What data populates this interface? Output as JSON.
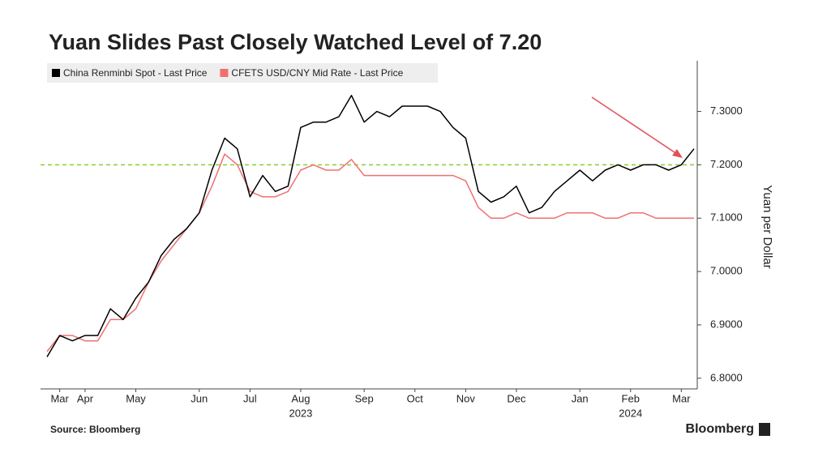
{
  "chart_data": {
    "type": "line",
    "title": "Yuan Slides Past Closely Watched Level of 7.20",
    "y_axis_label": "Yuan per Dollar",
    "source": "Source: Bloomberg",
    "brand": "Bloomberg",
    "categories": [
      null,
      "Mar",
      null,
      "Apr",
      null,
      null,
      null,
      "May",
      null,
      null,
      null,
      null,
      "Jun",
      null,
      null,
      null,
      "Jul",
      null,
      null,
      null,
      "Aug",
      null,
      null,
      null,
      null,
      "Sep",
      null,
      null,
      null,
      "Oct",
      null,
      null,
      null,
      "Nov",
      null,
      null,
      null,
      "Dec",
      null,
      null,
      null,
      null,
      "Jan",
      null,
      null,
      null,
      "Feb",
      null,
      null,
      null,
      "Mar",
      null
    ],
    "year_labels": [
      null,
      null,
      null,
      null,
      null,
      null,
      null,
      null,
      null,
      null,
      null,
      null,
      null,
      null,
      null,
      null,
      null,
      null,
      null,
      null,
      "2023",
      null,
      null,
      null,
      null,
      null,
      null,
      null,
      null,
      null,
      null,
      null,
      null,
      null,
      null,
      null,
      null,
      null,
      null,
      null,
      null,
      null,
      null,
      null,
      null,
      null,
      "2024",
      null,
      null,
      null,
      null,
      null
    ],
    "series": [
      {
        "name": "China Renminbi Spot - Last Price",
        "color": "#000000",
        "values": [
          6.84,
          6.88,
          6.87,
          6.88,
          6.88,
          6.93,
          6.91,
          6.95,
          6.98,
          7.03,
          7.06,
          7.08,
          7.11,
          7.19,
          7.25,
          7.23,
          7.14,
          7.18,
          7.15,
          7.16,
          7.27,
          7.28,
          7.28,
          7.29,
          7.33,
          7.28,
          7.3,
          7.29,
          7.31,
          7.31,
          7.31,
          7.3,
          7.27,
          7.25,
          7.15,
          7.13,
          7.14,
          7.16,
          7.11,
          7.12,
          7.15,
          7.17,
          7.19,
          7.17,
          7.19,
          7.2,
          7.19,
          7.2,
          7.2,
          7.19,
          7.2,
          7.23
        ]
      },
      {
        "name": "CFETS USD/CNY Mid Rate - Last Price",
        "color": "#f07070",
        "values": [
          6.85,
          6.88,
          6.88,
          6.87,
          6.87,
          6.91,
          6.91,
          6.93,
          6.98,
          7.02,
          7.05,
          7.08,
          7.11,
          7.16,
          7.22,
          7.2,
          7.15,
          7.14,
          7.14,
          7.15,
          7.19,
          7.2,
          7.19,
          7.19,
          7.21,
          7.18,
          7.18,
          7.18,
          7.18,
          7.18,
          7.18,
          7.18,
          7.18,
          7.17,
          7.12,
          7.1,
          7.1,
          7.11,
          7.1,
          7.1,
          7.1,
          7.11,
          7.11,
          7.11,
          7.1,
          7.1,
          7.11,
          7.11,
          7.1,
          7.1,
          7.1,
          7.1
        ]
      }
    ],
    "reference_line": {
      "value": 7.2,
      "color": "#8fd13f"
    },
    "ylim": [
      6.78,
      7.395
    ],
    "yticks": [
      {
        "value": 6.8,
        "label": "6.8000"
      },
      {
        "value": 6.9,
        "label": "6.9000"
      },
      {
        "value": 7.0,
        "label": "7.0000"
      },
      {
        "value": 7.1,
        "label": "7.1000"
      },
      {
        "value": 7.2,
        "label": "7.2000"
      },
      {
        "value": 7.3,
        "label": "7.3000"
      }
    ]
  }
}
